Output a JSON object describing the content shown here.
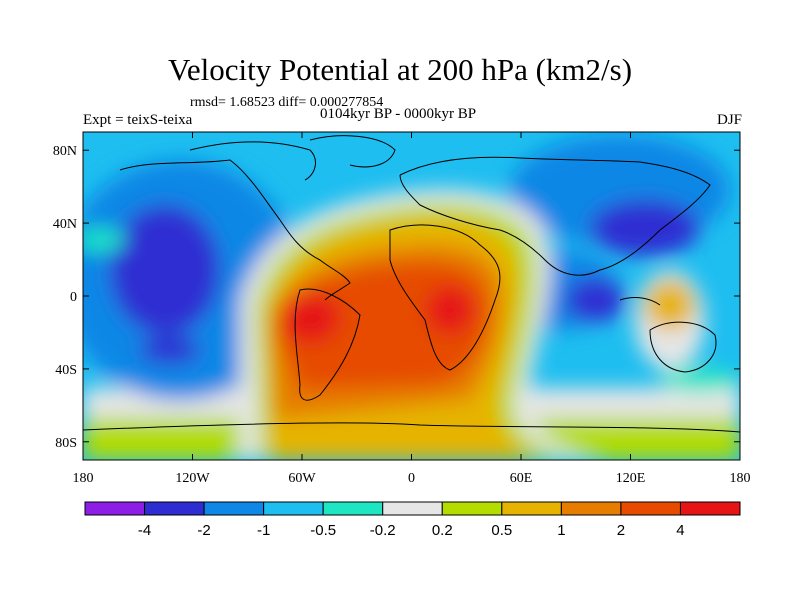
{
  "title": "Velocity Potential at 200 hPa (km2/s)",
  "stats": "rmsd= 1.68523 diff= 0.000277854",
  "periods": "0104kyr BP - 0000kyr BP",
  "experiment": "Expt = teixS-teixa",
  "season": "DJF",
  "map": {
    "projection": "cylindrical-equidistant",
    "lon_range": [
      -180,
      180
    ],
    "lat_range": [
      -90,
      90
    ],
    "lon_ticks": [
      {
        "value": -180,
        "label": "180"
      },
      {
        "value": -120,
        "label": "120W"
      },
      {
        "value": -60,
        "label": "60W"
      },
      {
        "value": 0,
        "label": "0"
      },
      {
        "value": 60,
        "label": "60E"
      },
      {
        "value": 120,
        "label": "120E"
      },
      {
        "value": 180,
        "label": "180"
      }
    ],
    "lat_ticks": [
      {
        "value": 80,
        "label": "80N"
      },
      {
        "value": 40,
        "label": "40N"
      },
      {
        "value": 0,
        "label": "0"
      },
      {
        "value": -40,
        "label": "40S"
      },
      {
        "value": -80,
        "label": "80S"
      }
    ]
  },
  "colorbar": {
    "colors": [
      "#8c1ee6",
      "#2d2dd2",
      "#0f87e6",
      "#1ebef0",
      "#1ee6c3",
      "#e6e6e6",
      "#b4dc00",
      "#e6b400",
      "#e67d00",
      "#e64b00",
      "#e61414"
    ],
    "labels": [
      "-4",
      "-2",
      "-1",
      "-0.5",
      "-0.2",
      "0.2",
      "0.5",
      "1",
      "2",
      "4"
    ]
  },
  "field_centers": [
    {
      "lon": -150,
      "lat": 5,
      "level": 1
    },
    {
      "lon": 140,
      "lat": 40,
      "level": 1
    },
    {
      "lon": 95,
      "lat": 10,
      "level": 1
    },
    {
      "lon": -55,
      "lat": -10,
      "level": 10
    },
    {
      "lon": 20,
      "lat": -10,
      "level": 10
    }
  ]
}
